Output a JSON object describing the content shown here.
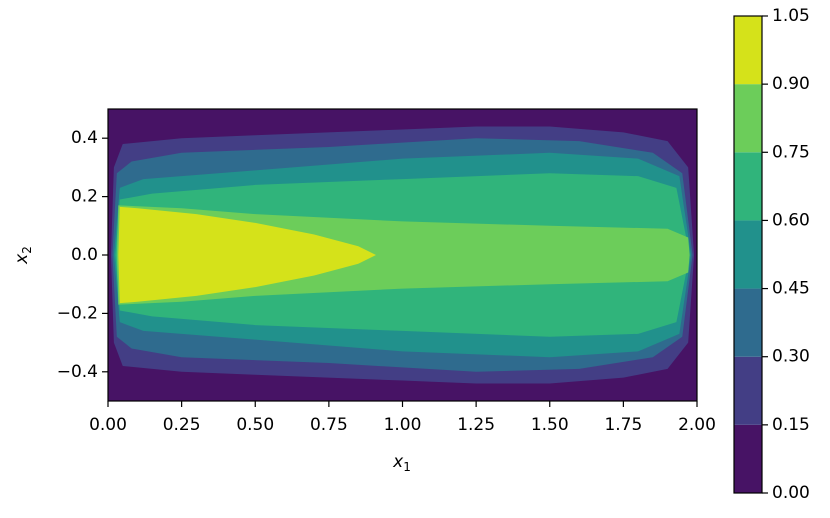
{
  "chart_data": {
    "type": "contour",
    "xlabel": "x",
    "xlabel_sub": "1",
    "ylabel": "x",
    "ylabel_sub": "2",
    "xlim": [
      0,
      2
    ],
    "ylim": [
      -0.5,
      0.5
    ],
    "xticks": [
      {
        "value": 0,
        "label": "0.00"
      },
      {
        "value": 0.25,
        "label": "0.25"
      },
      {
        "value": 0.5,
        "label": "0.50"
      },
      {
        "value": 0.75,
        "label": "0.75"
      },
      {
        "value": 1,
        "label": "1.00"
      },
      {
        "value": 1.25,
        "label": "1.25"
      },
      {
        "value": 1.5,
        "label": "1.50"
      },
      {
        "value": 1.75,
        "label": "1.75"
      },
      {
        "value": 2,
        "label": "2.00"
      }
    ],
    "yticks": [
      {
        "value": -0.4,
        "label": "−0.4"
      },
      {
        "value": -0.2,
        "label": "−0.2"
      },
      {
        "value": 0,
        "label": "0.0"
      },
      0.2,
      0.4
    ],
    "levels": [
      {
        "value": 0,
        "label": "0.00"
      },
      {
        "value": 0.15,
        "label": "0.15"
      },
      {
        "value": 0.3,
        "label": "0.30"
      },
      {
        "value": 0.45,
        "label": "0.45"
      },
      {
        "value": 0.6,
        "label": "0.60"
      },
      {
        "value": 0.75,
        "label": "0.75"
      },
      {
        "value": 0.9,
        "label": "0.90"
      },
      {
        "value": 1.05,
        "label": "1.05"
      }
    ],
    "colors": [
      "#471365",
      "#433e85",
      "#2f6b8e",
      "#21918c",
      "#30b47b",
      "#6ccd5a",
      "#d5e21a"
    ],
    "contours": [
      {
        "x1": [
          0.01,
          0.02,
          0.05,
          0.25,
          0.5,
          1.0,
          1.25,
          1.5,
          1.75,
          1.9,
          1.97,
          1.99
        ],
        "x2": [
          0.0,
          0.3,
          0.38,
          0.4,
          0.41,
          0.43,
          0.44,
          0.44,
          0.42,
          0.39,
          0.3,
          0.0
        ]
      },
      {
        "x1": [
          0.015,
          0.03,
          0.08,
          0.25,
          0.75,
          1.25,
          1.6,
          1.85,
          1.95,
          1.985
        ],
        "x2": [
          0.0,
          0.28,
          0.32,
          0.35,
          0.37,
          0.4,
          0.39,
          0.35,
          0.28,
          0.0
        ]
      },
      {
        "x1": [
          0.02,
          0.04,
          0.12,
          0.5,
          1.0,
          1.5,
          1.8,
          1.94,
          1.98
        ],
        "x2": [
          0.0,
          0.23,
          0.26,
          0.29,
          0.33,
          0.35,
          0.33,
          0.27,
          0.0
        ]
      },
      {
        "x1": [
          0.025,
          0.04,
          0.15,
          0.5,
          1.0,
          1.5,
          1.8,
          1.93,
          1.975
        ],
        "x2": [
          0.0,
          0.19,
          0.21,
          0.24,
          0.26,
          0.28,
          0.27,
          0.23,
          0.0
        ]
      },
      {
        "x1": [
          0.03,
          0.035,
          0.25,
          0.5,
          1.0,
          1.5,
          1.9,
          1.97,
          1.975
        ],
        "x2": [
          0.0,
          0.17,
          0.16,
          0.14,
          0.115,
          0.1,
          0.09,
          0.06,
          0.0
        ]
      },
      {
        "x1": [
          0.035,
          0.04,
          0.1,
          0.3,
          0.5,
          0.7,
          0.85,
          0.91
        ],
        "x2": [
          0.0,
          0.165,
          0.16,
          0.14,
          0.11,
          0.07,
          0.03,
          0.0
        ]
      }
    ]
  }
}
